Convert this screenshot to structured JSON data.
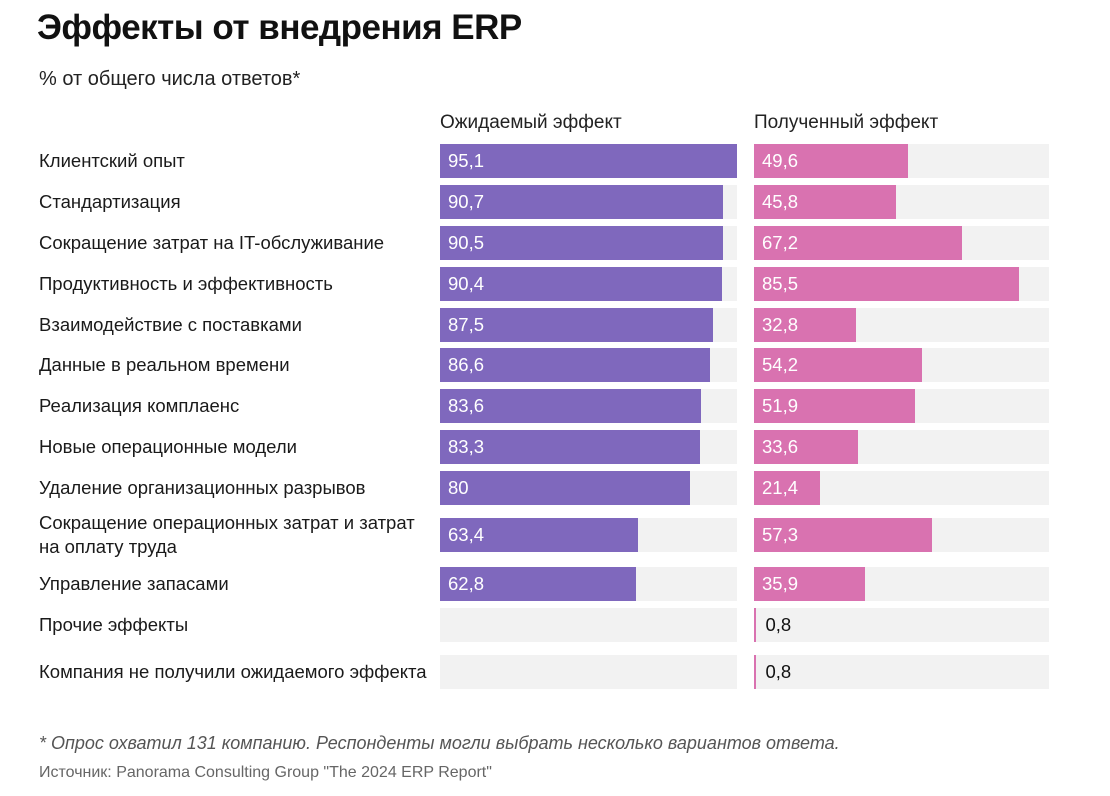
{
  "chart_data": {
    "type": "bar",
    "title": "Эффекты от внедрения ERP",
    "subtitle": "% от общего числа ответов*",
    "orientation": "horizontal",
    "categories": [
      "Клиентский опыт",
      "Стандартизация",
      "Сокращение затрат на IT-обслуживание",
      "Продуктивность и эффективность",
      "Взаимодействие с поставками",
      "Данные в реальном времени",
      "Реализация комплаенс",
      "Новые операционные модели",
      "Удаление организационных разрывов",
      "Сокращение операционных затрат и затрат на оплату труда",
      "Управление запасами",
      "Прочие эффекты",
      "Компания не получили ожидаемого эффекта"
    ],
    "series": [
      {
        "name": "Ожидаемый эффект",
        "color": "#7f68bd",
        "values": [
          95.1,
          90.7,
          90.5,
          90.4,
          87.5,
          86.6,
          83.6,
          83.3,
          80,
          63.4,
          62.8,
          null,
          null
        ],
        "labels": [
          "95,1",
          "90,7",
          "90,5",
          "90,4",
          "87,5",
          "86,6",
          "83,6",
          "83,3",
          "80",
          "63,4",
          "62,8",
          "",
          ""
        ]
      },
      {
        "name": "Полученный эффект",
        "color": "#d972b0",
        "values": [
          49.6,
          45.8,
          67.2,
          85.5,
          32.8,
          54.2,
          51.9,
          33.6,
          21.4,
          57.3,
          35.9,
          0.8,
          0.8
        ],
        "labels": [
          "49,6",
          "45,8",
          "67,2",
          "85,5",
          "32,8",
          "54,2",
          "51,9",
          "33,6",
          "21,4",
          "57,3",
          "35,9",
          "0,8",
          "0,8"
        ]
      }
    ],
    "track_color": "#f2f2f2",
    "xlim": [
      0,
      95.1
    ],
    "grid": false,
    "legend": "top (column headers)"
  },
  "footnote": "* Опрос охватил 131 компанию. Респонденты могли выбрать несколько вариантов ответа.",
  "source": "Источник: Panorama Consulting Group \"The 2024 ERP Report\""
}
